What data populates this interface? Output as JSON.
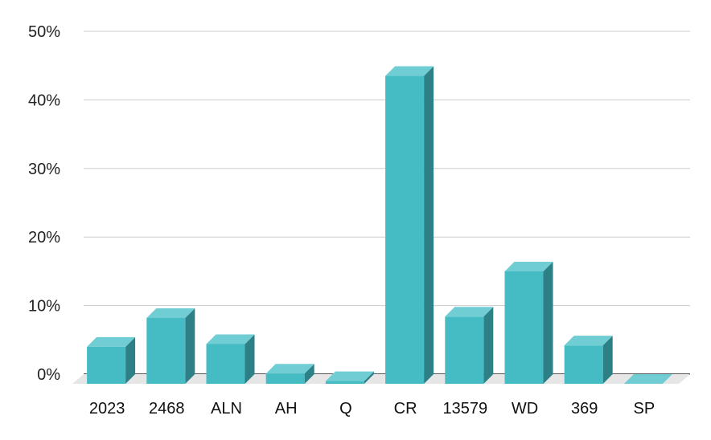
{
  "chart_data": {
    "type": "bar",
    "style": "3d-column",
    "title": "",
    "xlabel": "",
    "ylabel": "",
    "categories": [
      "2023",
      "2468",
      "ALN",
      "AH",
      "Q",
      "CR",
      "13579",
      "WD",
      "369",
      "SP"
    ],
    "values": [
      5.4,
      9.6,
      5.8,
      1.5,
      0.4,
      44.9,
      9.8,
      16.4,
      5.6,
      0.0
    ],
    "ylim": [
      0,
      50
    ],
    "yticks": [
      "0%",
      "10%",
      "20%",
      "30%",
      "40%",
      "50%"
    ],
    "grid": true,
    "legend": "none",
    "colors": {
      "front": "#45bcc4",
      "top": "#6fcdd3",
      "side": "#2e8087",
      "floor": "#e6e6e6",
      "grid": "#cccccc",
      "baseline": "#222222"
    }
  }
}
